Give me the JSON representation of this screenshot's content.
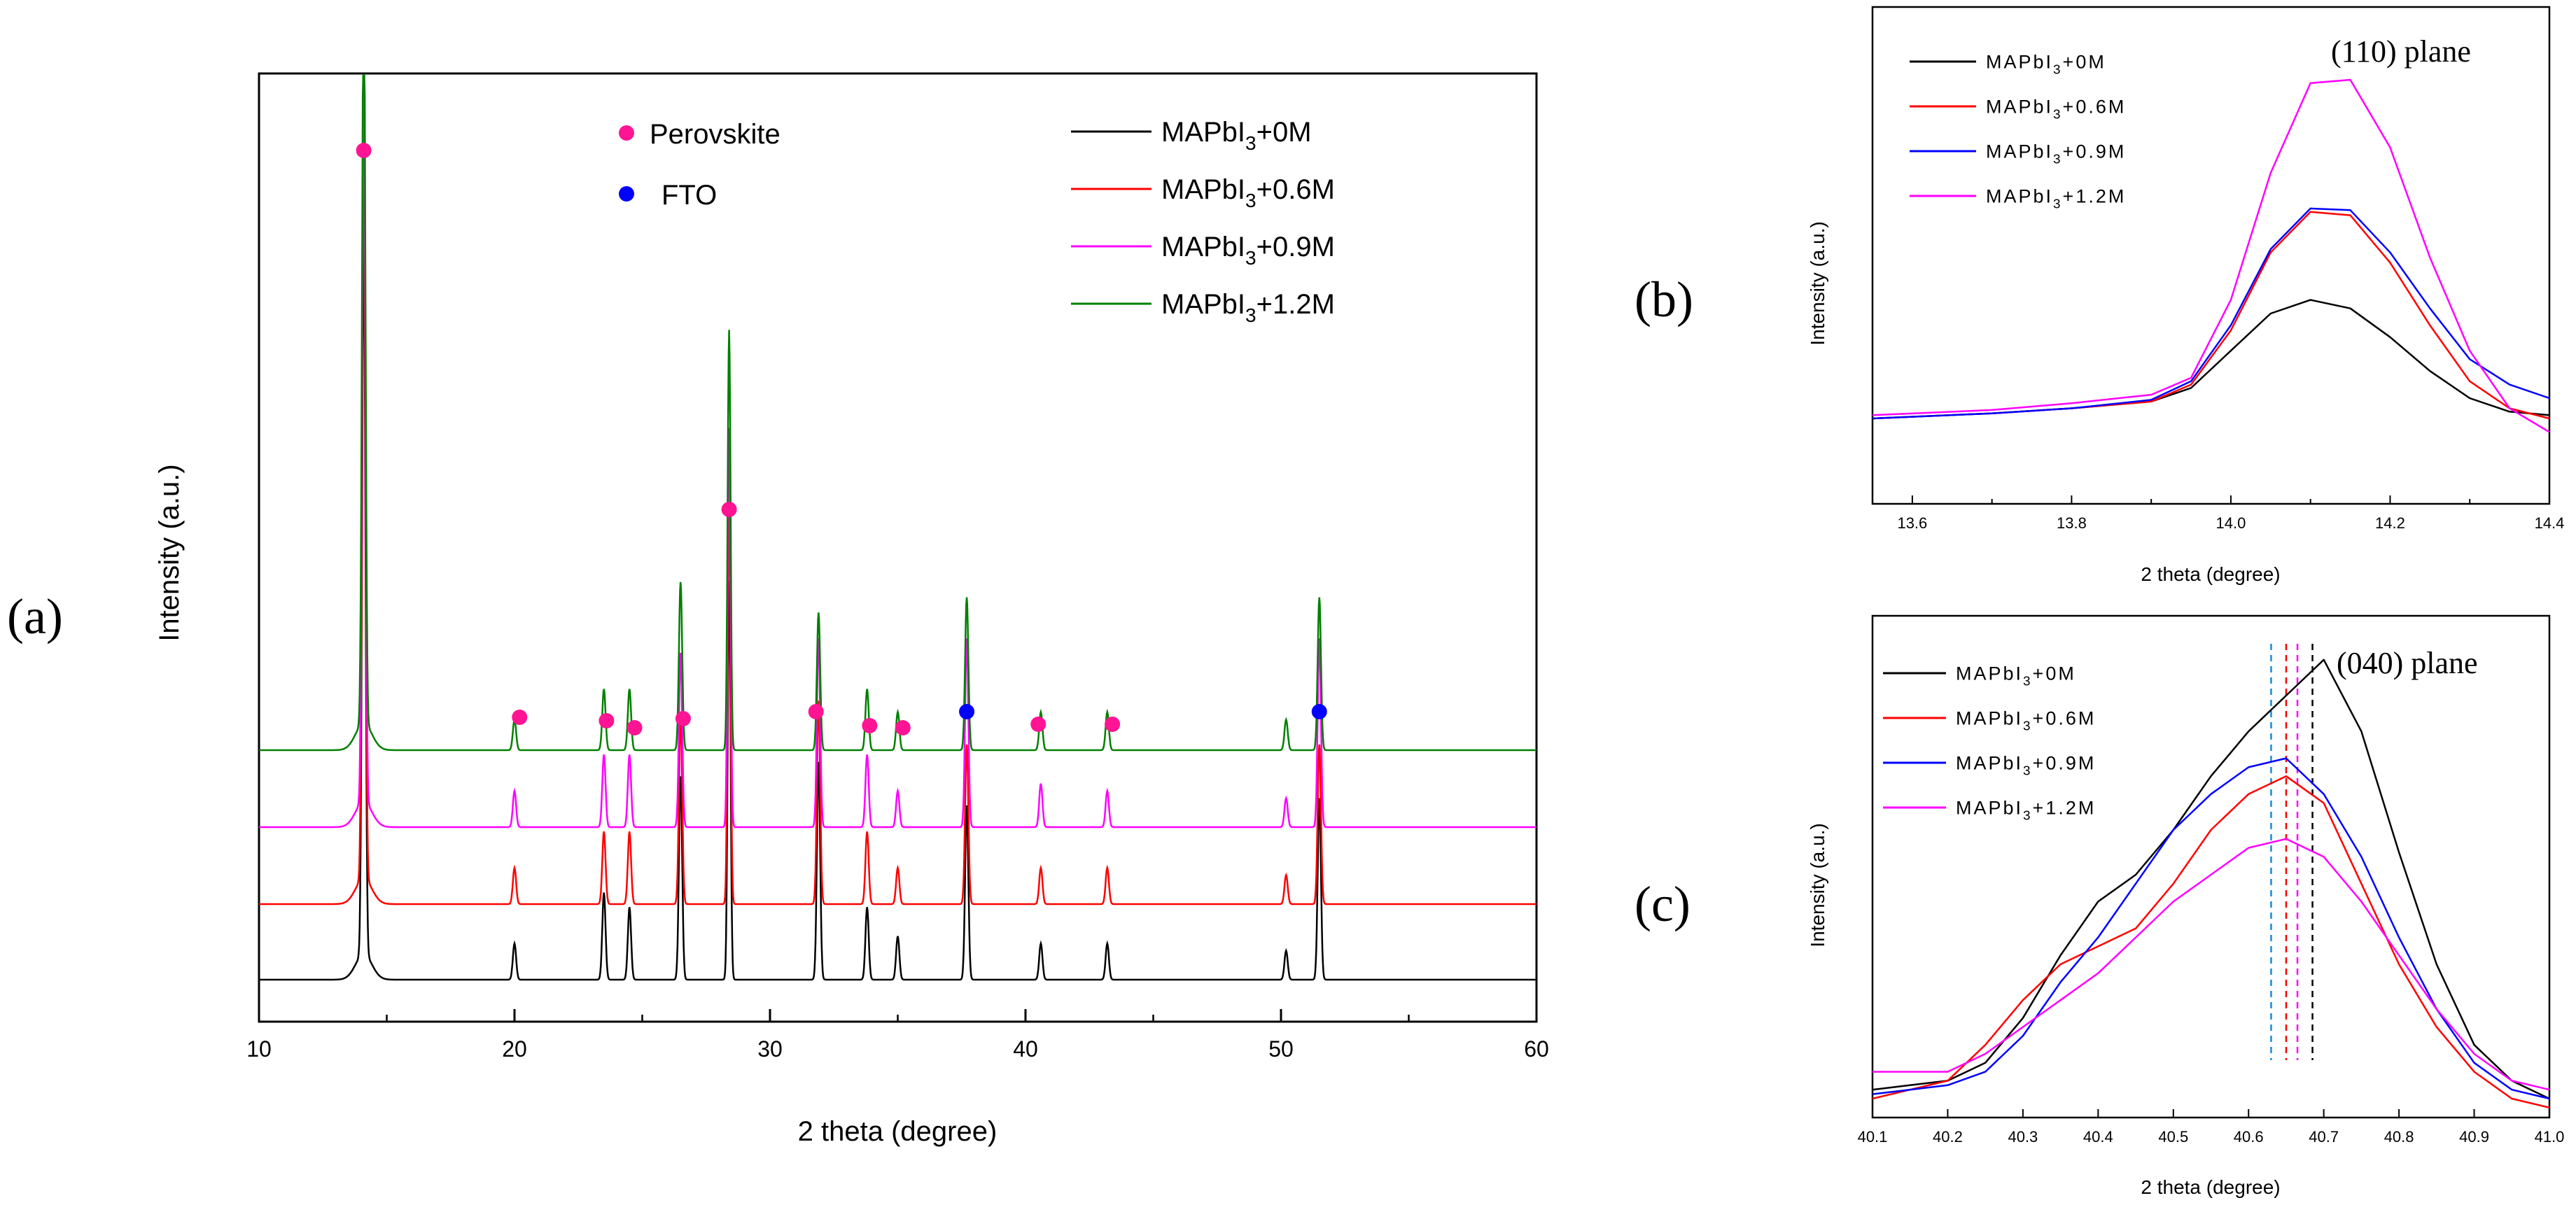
{
  "colors": {
    "s0M": "#000000",
    "s06M": "#ff0000",
    "s09M": "#ff00ff",
    "s12M": "#008000",
    "blue": "#0000ff",
    "perov": "#ff1493"
  },
  "chart_data": [
    {
      "panel": "(a)",
      "type": "line",
      "xlabel": "2 theta (degree)",
      "ylabel": "Intensity (a.u.)",
      "xlim": [
        10,
        60
      ],
      "xticks": [
        "10",
        "20",
        "30",
        "40",
        "50",
        "60"
      ],
      "peak_positions": [
        14.1,
        20.0,
        23.5,
        24.5,
        26.5,
        28.4,
        31.9,
        33.8,
        35.0,
        37.7,
        40.6,
        43.2,
        50.2,
        51.5
      ],
      "legend": [
        {
          "prefix": "MAPbI",
          "sub": "3",
          "suffix": "+0M",
          "color": "#000000"
        },
        {
          "prefix": "MAPbI",
          "sub": "3",
          "suffix": "+0.6M",
          "color": "#ff0000"
        },
        {
          "prefix": "MAPbI",
          "sub": "3",
          "suffix": "+0.9M",
          "color": "#ff00ff"
        },
        {
          "prefix": "MAPbI",
          "sub": "3",
          "suffix": "+1.2M",
          "color": "#008000"
        }
      ],
      "marker_legend": [
        {
          "label": "Perovskite",
          "color": "#ff1493"
        },
        {
          "label": "FTO",
          "color": "#0000ff"
        }
      ],
      "series": [
        {
          "name": "MAPbI3+0M",
          "offset": 0,
          "peaks": [
            [
              14.1,
              1.0
            ],
            [
              20.0,
              0.05
            ],
            [
              23.5,
              0.12
            ],
            [
              24.5,
              0.1
            ],
            [
              26.5,
              0.28
            ],
            [
              28.4,
              0.55
            ],
            [
              31.9,
              0.3
            ],
            [
              33.8,
              0.1
            ],
            [
              35.0,
              0.06
            ],
            [
              37.7,
              0.24
            ],
            [
              40.6,
              0.05
            ],
            [
              43.2,
              0.05
            ],
            [
              50.2,
              0.04
            ],
            [
              51.5,
              0.25
            ]
          ]
        },
        {
          "name": "MAPbI3+0.6M",
          "offset": 1,
          "peaks": [
            [
              14.1,
              1.0
            ],
            [
              20.0,
              0.05
            ],
            [
              23.5,
              0.1
            ],
            [
              24.5,
              0.1
            ],
            [
              26.5,
              0.26
            ],
            [
              28.4,
              0.55
            ],
            [
              31.9,
              0.28
            ],
            [
              33.8,
              0.1
            ],
            [
              35.0,
              0.05
            ],
            [
              37.7,
              0.22
            ],
            [
              40.6,
              0.05
            ],
            [
              43.2,
              0.05
            ],
            [
              50.2,
              0.04
            ],
            [
              51.5,
              0.22
            ]
          ]
        },
        {
          "name": "MAPbI3+0.9M",
          "offset": 2,
          "peaks": [
            [
              14.1,
              1.0
            ],
            [
              20.0,
              0.05
            ],
            [
              23.5,
              0.1
            ],
            [
              24.5,
              0.1
            ],
            [
              26.5,
              0.24
            ],
            [
              28.4,
              0.55
            ],
            [
              31.9,
              0.26
            ],
            [
              33.8,
              0.1
            ],
            [
              35.0,
              0.05
            ],
            [
              37.7,
              0.26
            ],
            [
              40.6,
              0.06
            ],
            [
              43.2,
              0.05
            ],
            [
              50.2,
              0.04
            ],
            [
              51.5,
              0.26
            ]
          ]
        },
        {
          "name": "MAPbI3+1.2M",
          "offset": 3,
          "peaks": [
            [
              14.1,
              1.0
            ],
            [
              20.0,
              0.04
            ],
            [
              23.5,
              0.08
            ],
            [
              24.5,
              0.08
            ],
            [
              26.5,
              0.22
            ],
            [
              28.4,
              0.55
            ],
            [
              31.9,
              0.18
            ],
            [
              33.8,
              0.08
            ],
            [
              35.0,
              0.05
            ],
            [
              37.7,
              0.2
            ],
            [
              40.6,
              0.05
            ],
            [
              43.2,
              0.05
            ],
            [
              50.2,
              0.04
            ],
            [
              51.5,
              0.2
            ]
          ]
        }
      ],
      "perovskite_markers": [
        14.1,
        20.2,
        23.6,
        24.7,
        26.6,
        28.4,
        31.8,
        33.9,
        35.2,
        40.5,
        43.4
      ],
      "fto_markers": [
        37.7,
        51.5
      ]
    },
    {
      "panel": "(b)",
      "type": "line",
      "xlabel": "2 theta (degree)",
      "ylabel": "Intensity (a.u.)",
      "xlim": [
        13.55,
        14.4
      ],
      "xticks": [
        "13.6",
        "13.8",
        "14.0",
        "14.2",
        "14.4"
      ],
      "annotation": "(110) plane",
      "legend": [
        {
          "prefix": "MAPbI",
          "sub": "3",
          "suffix": "+0M",
          "color": "#000000"
        },
        {
          "prefix": "MAPbI",
          "sub": "3",
          "suffix": "+0.6M",
          "color": "#ff0000"
        },
        {
          "prefix": "MAPbI",
          "sub": "3",
          "suffix": "+0.9M",
          "color": "#0000ff"
        },
        {
          "prefix": "MAPbI",
          "sub": "3",
          "suffix": "+1.2M",
          "color": "#ff00ff"
        }
      ],
      "series": [
        {
          "name": "MAPbI3+0M",
          "color": "#000000",
          "x": [
            13.55,
            13.7,
            13.8,
            13.9,
            13.95,
            14.0,
            14.05,
            14.1,
            14.15,
            14.2,
            14.25,
            14.3,
            14.35,
            14.4
          ],
          "y": [
            0.0,
            0.03,
            0.06,
            0.1,
            0.18,
            0.4,
            0.62,
            0.7,
            0.65,
            0.48,
            0.28,
            0.12,
            0.04,
            0.02
          ]
        },
        {
          "name": "MAPbI3+0.6M",
          "color": "#ff0000",
          "x": [
            13.55,
            13.7,
            13.8,
            13.9,
            13.95,
            14.0,
            14.05,
            14.1,
            14.15,
            14.2,
            14.25,
            14.3,
            14.35,
            14.4
          ],
          "y": [
            0.0,
            0.03,
            0.06,
            0.1,
            0.2,
            0.52,
            0.98,
            1.22,
            1.2,
            0.92,
            0.55,
            0.22,
            0.06,
            0.0
          ]
        },
        {
          "name": "MAPbI3+0.9M",
          "color": "#0000ff",
          "x": [
            13.55,
            13.7,
            13.8,
            13.9,
            13.95,
            14.0,
            14.05,
            14.1,
            14.15,
            14.2,
            14.25,
            14.3,
            14.35,
            14.4
          ],
          "y": [
            0.0,
            0.03,
            0.06,
            0.11,
            0.22,
            0.55,
            1.0,
            1.24,
            1.23,
            0.98,
            0.65,
            0.35,
            0.2,
            0.12
          ]
        },
        {
          "name": "MAPbI3+1.2M",
          "color": "#ff00ff",
          "x": [
            13.55,
            13.7,
            13.8,
            13.9,
            13.95,
            14.0,
            14.05,
            14.1,
            14.15,
            14.2,
            14.25,
            14.3,
            14.35,
            14.4
          ],
          "y": [
            0.02,
            0.05,
            0.09,
            0.14,
            0.24,
            0.7,
            1.45,
            1.98,
            2.0,
            1.6,
            0.95,
            0.4,
            0.06,
            -0.08
          ]
        }
      ]
    },
    {
      "panel": "(c)",
      "type": "line",
      "xlabel": "2 theta (degree)",
      "ylabel": "Intensity (a.u.)",
      "xlim": [
        40.1,
        41.0
      ],
      "xticks": [
        "40.1",
        "40.2",
        "40.3",
        "40.4",
        "40.5",
        "40.6",
        "40.7",
        "40.8",
        "40.9",
        "41.0"
      ],
      "annotation": "(040) plane",
      "peak_lines": [
        {
          "x": 40.63,
          "color": "#1a8bd6"
        },
        {
          "x": 40.65,
          "color": "#ff0000"
        },
        {
          "x": 40.665,
          "color": "#ff00ff"
        },
        {
          "x": 40.685,
          "color": "#000000"
        }
      ],
      "legend": [
        {
          "prefix": "MAPbI",
          "sub": "3",
          "suffix": "+0M",
          "color": "#000000"
        },
        {
          "prefix": "MAPbI",
          "sub": "3",
          "suffix": "+0.6M",
          "color": "#ff0000"
        },
        {
          "prefix": "MAPbI",
          "sub": "3",
          "suffix": "+0.9M",
          "color": "#0000ff"
        },
        {
          "prefix": "MAPbI",
          "sub": "3",
          "suffix": "+1.2M",
          "color": "#ff00ff"
        }
      ],
      "series": [
        {
          "name": "MAPbI3+0M",
          "color": "#000000",
          "x": [
            40.1,
            40.15,
            40.2,
            40.25,
            40.3,
            40.35,
            40.4,
            40.45,
            40.5,
            40.55,
            40.6,
            40.65,
            40.7,
            40.75,
            40.8,
            40.85,
            40.9,
            40.95,
            41.0
          ],
          "y": [
            0.02,
            0.03,
            0.04,
            0.08,
            0.18,
            0.32,
            0.44,
            0.5,
            0.6,
            0.72,
            0.82,
            0.9,
            0.98,
            0.82,
            0.55,
            0.3,
            0.12,
            0.04,
            0.0
          ]
        },
        {
          "name": "MAPbI3+0.6M",
          "color": "#ff0000",
          "x": [
            40.1,
            40.15,
            40.2,
            40.25,
            40.3,
            40.35,
            40.4,
            40.45,
            40.5,
            40.55,
            40.6,
            40.65,
            40.7,
            40.75,
            40.8,
            40.85,
            40.9,
            40.95,
            41.0
          ],
          "y": [
            0.0,
            0.02,
            0.04,
            0.12,
            0.22,
            0.3,
            0.34,
            0.38,
            0.48,
            0.6,
            0.68,
            0.72,
            0.66,
            0.48,
            0.3,
            0.16,
            0.06,
            0.0,
            -0.02
          ]
        },
        {
          "name": "MAPbI3+0.9M",
          "color": "#0000ff",
          "x": [
            40.1,
            40.15,
            40.2,
            40.25,
            40.3,
            40.35,
            40.4,
            40.45,
            40.5,
            40.55,
            40.6,
            40.65,
            40.7,
            40.75,
            40.8,
            40.85,
            40.9,
            40.95,
            41.0
          ],
          "y": [
            0.01,
            0.02,
            0.03,
            0.06,
            0.14,
            0.26,
            0.36,
            0.48,
            0.6,
            0.68,
            0.74,
            0.76,
            0.68,
            0.54,
            0.36,
            0.2,
            0.08,
            0.02,
            0.0
          ]
        },
        {
          "name": "MAPbI3+1.2M",
          "color": "#ff00ff",
          "x": [
            40.1,
            40.15,
            40.2,
            40.25,
            40.3,
            40.35,
            40.4,
            40.45,
            40.5,
            40.55,
            40.6,
            40.65,
            40.7,
            40.75,
            40.8,
            40.85,
            40.9,
            40.95,
            41.0
          ],
          "y": [
            0.06,
            0.06,
            0.06,
            0.1,
            0.16,
            0.22,
            0.28,
            0.36,
            0.44,
            0.5,
            0.56,
            0.58,
            0.54,
            0.44,
            0.32,
            0.2,
            0.1,
            0.04,
            0.02
          ]
        }
      ]
    }
  ]
}
